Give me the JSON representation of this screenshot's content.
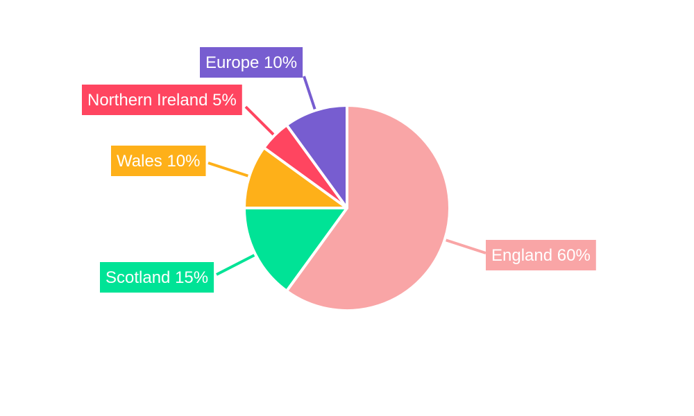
{
  "chart_data": {
    "type": "pie",
    "categories": [
      "England",
      "Scotland",
      "Wales",
      "Northern Ireland",
      "Europe"
    ],
    "values": [
      60,
      15,
      10,
      5,
      10
    ],
    "labels": [
      "England 60%",
      "Scotland 15%",
      "Wales 10%",
      "Northern Ireland 5%",
      "Europe 10%"
    ],
    "colors": [
      "#F9A5A6",
      "#00E396",
      "#FEB019",
      "#FF4560",
      "#775DD0"
    ],
    "start_angle": "top",
    "direction": "clockwise",
    "legend": "none"
  }
}
